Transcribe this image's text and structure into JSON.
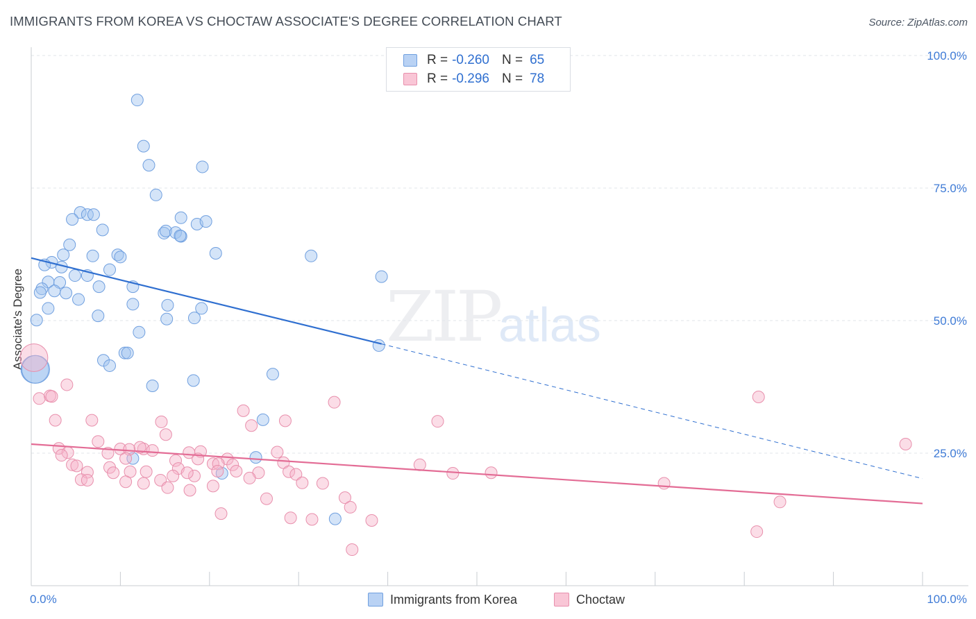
{
  "header": {
    "title": "IMMIGRANTS FROM KOREA VS CHOCTAW ASSOCIATE'S DEGREE CORRELATION CHART",
    "source": "Source: ZipAtlas.com"
  },
  "watermark": {
    "zip": "ZIP",
    "atlas": "atlas"
  },
  "legend": {
    "rows": [
      {
        "r_label": "R =",
        "r_value": "-0.260",
        "n_label": "N =",
        "n_value": "65",
        "fill": "#b9d2f4",
        "stroke": "#6f9fdf"
      },
      {
        "r_label": "R =",
        "r_value": "-0.296",
        "n_label": "N =",
        "n_value": "78",
        "fill": "#f9c6d6",
        "stroke": "#e88fac"
      }
    ]
  },
  "bottom_legend": [
    {
      "label": "Immigrants from Korea",
      "fill": "#b9d2f4",
      "stroke": "#6f9fdf"
    },
    {
      "label": "Choctaw",
      "fill": "#f9c6d6",
      "stroke": "#e88fac"
    }
  ],
  "colors": {
    "blue_fill": "rgba(160,196,240,0.45)",
    "blue_stroke": "#6f9fdf",
    "blue_line": "#2f6fd0",
    "pink_fill": "rgba(246,180,202,0.45)",
    "pink_stroke": "#e88fac",
    "pink_line": "#e36c95",
    "grid": "#e2e6ea",
    "tick_label": "#3f7bd6"
  },
  "chart_data": {
    "type": "scatter",
    "title": "IMMIGRANTS FROM KOREA VS CHOCTAW ASSOCIATE'S DEGREE CORRELATION CHART",
    "xlabel": "",
    "ylabel": "Associate's Degree",
    "xlim": [
      0,
      100
    ],
    "ylim": [
      0,
      100
    ],
    "x_tick_labels": [
      "0.0%",
      "100.0%"
    ],
    "y_tick_labels": [
      "25.0%",
      "50.0%",
      "75.0%",
      "100.0%"
    ],
    "y_ticks": [
      25,
      50,
      75,
      100
    ],
    "grid": true,
    "legend_position": "top-center",
    "series": [
      {
        "name": "Immigrants from Korea",
        "points": [
          [
            11.9,
            91.6
          ],
          [
            12.6,
            82.9
          ],
          [
            13.2,
            79.3
          ],
          [
            19.2,
            79.0
          ],
          [
            14.0,
            73.7
          ],
          [
            5.5,
            70.4
          ],
          [
            6.3,
            70.0
          ],
          [
            7.0,
            70.0
          ],
          [
            4.6,
            69.1
          ],
          [
            16.8,
            69.4
          ],
          [
            18.6,
            68.2
          ],
          [
            19.6,
            68.7
          ],
          [
            8.0,
            67.1
          ],
          [
            14.9,
            66.5
          ],
          [
            15.1,
            66.9
          ],
          [
            16.2,
            66.6
          ],
          [
            16.8,
            65.9
          ],
          [
            16.7,
            66.0
          ],
          [
            4.3,
            64.3
          ],
          [
            3.6,
            62.4
          ],
          [
            6.9,
            62.2
          ],
          [
            9.7,
            62.4
          ],
          [
            10.0,
            62.0
          ],
          [
            20.7,
            62.7
          ],
          [
            31.4,
            62.2
          ],
          [
            2.3,
            61.0
          ],
          [
            1.5,
            60.5
          ],
          [
            3.4,
            60.1
          ],
          [
            8.8,
            59.6
          ],
          [
            4.9,
            58.5
          ],
          [
            6.3,
            58.5
          ],
          [
            39.3,
            58.3
          ],
          [
            1.9,
            57.3
          ],
          [
            3.2,
            57.2
          ],
          [
            7.6,
            56.4
          ],
          [
            11.4,
            56.4
          ],
          [
            1.2,
            56.0
          ],
          [
            2.6,
            55.6
          ],
          [
            1.0,
            55.3
          ],
          [
            3.9,
            55.2
          ],
          [
            5.3,
            54.0
          ],
          [
            15.3,
            52.9
          ],
          [
            11.4,
            53.1
          ],
          [
            1.9,
            52.3
          ],
          [
            19.1,
            52.3
          ],
          [
            7.5,
            50.9
          ],
          [
            15.2,
            50.3
          ],
          [
            18.3,
            50.5
          ],
          [
            0.6,
            50.1
          ],
          [
            12.1,
            47.8
          ],
          [
            39.0,
            45.3
          ],
          [
            10.5,
            43.9
          ],
          [
            10.8,
            43.9
          ],
          [
            8.1,
            42.5
          ],
          [
            8.8,
            41.5
          ],
          [
            0.4,
            40.8
          ],
          [
            27.1,
            39.9
          ],
          [
            18.2,
            38.7
          ],
          [
            13.6,
            37.7
          ],
          [
            26.0,
            31.3
          ],
          [
            11.4,
            24.0
          ],
          [
            25.2,
            24.2
          ],
          [
            21.4,
            21.2
          ],
          [
            34.1,
            12.6
          ],
          [
            0.5,
            40.8
          ]
        ],
        "trend": {
          "x_start": 0,
          "y_start": 61.8,
          "x_solid_end": 39.3,
          "y_solid_end": 45.6,
          "x_end": 100,
          "y_end": 20.2
        }
      },
      {
        "name": "Choctaw",
        "points": [
          [
            0.3,
            43.0
          ],
          [
            4.0,
            37.9
          ],
          [
            2.1,
            35.8
          ],
          [
            0.9,
            35.3
          ],
          [
            2.3,
            35.7
          ],
          [
            34.0,
            34.6
          ],
          [
            81.6,
            35.6
          ],
          [
            23.8,
            33.0
          ],
          [
            2.7,
            31.2
          ],
          [
            6.8,
            31.2
          ],
          [
            14.6,
            30.9
          ],
          [
            28.5,
            31.1
          ],
          [
            45.6,
            31.0
          ],
          [
            24.7,
            30.2
          ],
          [
            15.1,
            28.5
          ],
          [
            7.5,
            27.2
          ],
          [
            98.1,
            26.7
          ],
          [
            3.1,
            25.9
          ],
          [
            10.0,
            25.8
          ],
          [
            11.0,
            25.7
          ],
          [
            12.6,
            25.8
          ],
          [
            12.2,
            26.1
          ],
          [
            27.6,
            25.2
          ],
          [
            17.7,
            25.1
          ],
          [
            19.0,
            25.3
          ],
          [
            4.1,
            25.1
          ],
          [
            8.6,
            25.0
          ],
          [
            13.6,
            25.5
          ],
          [
            3.4,
            24.6
          ],
          [
            18.7,
            23.9
          ],
          [
            10.6,
            24.0
          ],
          [
            16.2,
            23.6
          ],
          [
            22.0,
            23.9
          ],
          [
            20.4,
            23.0
          ],
          [
            28.3,
            23.2
          ],
          [
            4.6,
            22.8
          ],
          [
            5.1,
            22.6
          ],
          [
            8.8,
            22.3
          ],
          [
            11.1,
            21.5
          ],
          [
            16.5,
            22.1
          ],
          [
            21.0,
            23.0
          ],
          [
            22.6,
            22.8
          ],
          [
            43.6,
            22.8
          ],
          [
            12.9,
            21.5
          ],
          [
            20.9,
            21.6
          ],
          [
            23.0,
            21.6
          ],
          [
            28.9,
            21.5
          ],
          [
            25.5,
            21.3
          ],
          [
            6.3,
            21.4
          ],
          [
            9.2,
            21.3
          ],
          [
            15.9,
            20.7
          ],
          [
            18.3,
            20.7
          ],
          [
            17.5,
            21.3
          ],
          [
            29.7,
            21.0
          ],
          [
            47.3,
            21.2
          ],
          [
            51.6,
            21.3
          ],
          [
            24.5,
            20.3
          ],
          [
            10.6,
            19.6
          ],
          [
            14.5,
            19.9
          ],
          [
            5.6,
            20.0
          ],
          [
            6.3,
            19.9
          ],
          [
            12.6,
            19.3
          ],
          [
            30.4,
            19.4
          ],
          [
            32.7,
            19.3
          ],
          [
            71.0,
            19.3
          ],
          [
            15.3,
            18.5
          ],
          [
            17.8,
            18.0
          ],
          [
            20.4,
            18.8
          ],
          [
            35.2,
            16.6
          ],
          [
            35.8,
            14.8
          ],
          [
            26.4,
            16.4
          ],
          [
            84.0,
            15.8
          ],
          [
            21.3,
            13.6
          ],
          [
            29.1,
            12.8
          ],
          [
            31.5,
            12.5
          ],
          [
            38.2,
            12.3
          ],
          [
            81.4,
            10.2
          ],
          [
            36.0,
            6.8
          ]
        ],
        "trend": {
          "x_start": 0,
          "y_start": 26.7,
          "x_end": 100,
          "y_end": 15.5
        }
      }
    ]
  }
}
